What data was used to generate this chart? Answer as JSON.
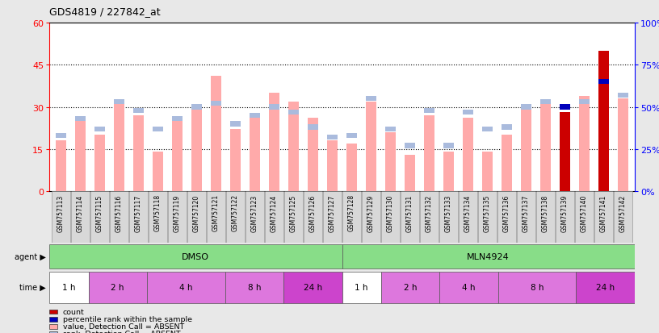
{
  "title": "GDS4819 / 227842_at",
  "samples": [
    "GSM757113",
    "GSM757114",
    "GSM757115",
    "GSM757116",
    "GSM757117",
    "GSM757118",
    "GSM757119",
    "GSM757120",
    "GSM757121",
    "GSM757122",
    "GSM757123",
    "GSM757124",
    "GSM757125",
    "GSM757126",
    "GSM757127",
    "GSM757128",
    "GSM757129",
    "GSM757130",
    "GSM757131",
    "GSM757132",
    "GSM757133",
    "GSM757134",
    "GSM757135",
    "GSM757136",
    "GSM757137",
    "GSM757138",
    "GSM757139",
    "GSM757140",
    "GSM757141",
    "GSM757142"
  ],
  "values": [
    18,
    25,
    20,
    32,
    27,
    14,
    25,
    30,
    41,
    22,
    27,
    35,
    32,
    26,
    18,
    17,
    32,
    21,
    13,
    27,
    14,
    26,
    14,
    20,
    30,
    31,
    28,
    34,
    50,
    33
  ],
  "ranks_pct": [
    33,
    43,
    37,
    53,
    48,
    37,
    43,
    50,
    52,
    40,
    45,
    50,
    47,
    38,
    32,
    33,
    55,
    37,
    27,
    48,
    27,
    47,
    37,
    38,
    50,
    53,
    50,
    53,
    65,
    57
  ],
  "count_val": [
    0,
    0,
    0,
    0,
    0,
    0,
    0,
    0,
    0,
    0,
    0,
    0,
    0,
    0,
    0,
    0,
    0,
    0,
    0,
    0,
    0,
    0,
    0,
    0,
    0,
    0,
    28,
    0,
    50,
    0
  ],
  "count_rank_pct": [
    0,
    0,
    0,
    0,
    0,
    0,
    0,
    0,
    0,
    0,
    0,
    0,
    0,
    0,
    0,
    0,
    0,
    0,
    0,
    0,
    0,
    0,
    0,
    0,
    0,
    0,
    50,
    0,
    65,
    0
  ],
  "ylim_left": [
    0,
    60
  ],
  "ylim_right": [
    0,
    100
  ],
  "yticks_left": [
    0,
    15,
    30,
    45,
    60
  ],
  "yticks_right": [
    0,
    25,
    50,
    75,
    100
  ],
  "bar_color_value": "#ffaaaa",
  "bar_color_rank": "#aabbdd",
  "bar_color_count": "#cc0000",
  "bar_color_count_rank": "#0000bb",
  "bg_color": "#e8e8e8",
  "plot_bg": "#ffffff",
  "agent_color": "#88dd88",
  "time_defs": [
    [
      0,
      2,
      "1 h",
      "#ffffff"
    ],
    [
      2,
      5,
      "2 h",
      "#dd77dd"
    ],
    [
      5,
      9,
      "4 h",
      "#dd77dd"
    ],
    [
      9,
      12,
      "8 h",
      "#dd77dd"
    ],
    [
      12,
      15,
      "24 h",
      "#cc44cc"
    ],
    [
      15,
      17,
      "1 h",
      "#ffffff"
    ],
    [
      17,
      20,
      "2 h",
      "#dd77dd"
    ],
    [
      20,
      23,
      "4 h",
      "#dd77dd"
    ],
    [
      23,
      27,
      "8 h",
      "#dd77dd"
    ],
    [
      27,
      30,
      "24 h",
      "#cc44cc"
    ]
  ]
}
